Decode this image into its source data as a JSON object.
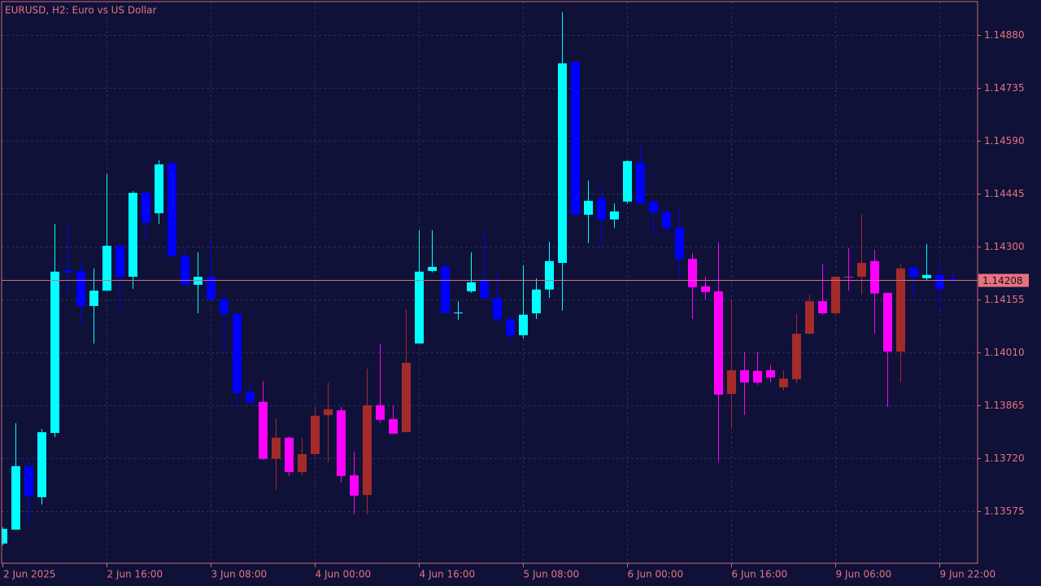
{
  "chart_data": {
    "type": "candlestick",
    "title": "EURUSD, H2:  Euro vs US Dollar",
    "categories": [
      "2 Jun 2025",
      null,
      null,
      null,
      null,
      null,
      null,
      null,
      "2 Jun 16:00",
      null,
      null,
      null,
      null,
      null,
      null,
      null,
      "3 Jun 08:00",
      null,
      null,
      null,
      null,
      null,
      null,
      null,
      "4 Jun 00:00",
      null,
      null,
      null,
      null,
      null,
      null,
      null,
      "4 Jun 16:00",
      null,
      null,
      null,
      null,
      null,
      null,
      null,
      "5 Jun 08:00",
      null,
      null,
      null,
      null,
      null,
      null,
      null,
      "6 Jun 00:00",
      null,
      null,
      null,
      null,
      null,
      null,
      null,
      "6 Jun 16:00",
      null,
      null,
      null,
      null,
      null,
      null,
      null,
      "9 Jun 06:00",
      null,
      null,
      null,
      null,
      null,
      null,
      null,
      "9 Jun 22:00",
      null
    ],
    "open": [
      1.13486,
      1.13524,
      1.13698,
      1.13613,
      1.13789,
      1.14235,
      1.14233,
      1.14137,
      1.14179,
      1.14302,
      1.14217,
      1.14447,
      1.14391,
      1.14528,
      1.14273,
      1.14195,
      1.14217,
      1.14155,
      1.14115,
      1.13901,
      1.13874,
      1.13718,
      1.13776,
      1.13682,
      1.13731,
      1.13838,
      1.13851,
      1.13673,
      1.13619,
      1.13865,
      1.13827,
      1.13791,
      1.14034,
      1.14233,
      1.14244,
      1.14117,
      1.14177,
      1.14206,
      1.14159,
      1.14101,
      1.14057,
      1.14117,
      1.14182,
      1.14255,
      1.14806,
      1.14387,
      1.14432,
      1.14374,
      1.14423,
      1.1453,
      1.14423,
      1.14394,
      1.14351,
      1.14266,
      1.14191,
      1.14177,
      1.13896,
      1.13961,
      1.13959,
      1.13961,
      1.13914,
      1.13936,
      1.14061,
      1.1415,
      1.14117,
      1.14217,
      1.14217,
      1.1426,
      1.14173,
      1.14012,
      1.14242,
      1.14213,
      1.14222,
      1.14211
    ],
    "high": [
      1.1353,
      1.13816,
      1.13715,
      1.138,
      1.14362,
      1.14367,
      1.14262,
      1.1424,
      1.14499,
      1.14307,
      1.14452,
      1.14452,
      1.14536,
      1.14534,
      1.14295,
      1.14284,
      1.14311,
      1.14173,
      1.14119,
      1.13927,
      1.13932,
      1.13829,
      1.13778,
      1.13776,
      1.1386,
      1.13927,
      1.1386,
      1.13738,
      1.13965,
      1.14034,
      1.13865,
      1.14128,
      1.14345,
      1.14345,
      1.14262,
      1.1415,
      1.14284,
      1.14345,
      1.14226,
      1.1411,
      1.14249,
      1.14213,
      1.14313,
      1.14942,
      1.14806,
      1.14481,
      1.14467,
      1.14418,
      1.14536,
      1.14574,
      1.14429,
      1.14409,
      1.14411,
      1.14282,
      1.14217,
      1.14311,
      1.14155,
      1.14012,
      1.14012,
      1.13976,
      1.13961,
      1.14115,
      1.14168,
      1.14251,
      1.14217,
      1.14295,
      1.14387,
      1.14291,
      1.14173,
      1.14251,
      1.14246,
      1.14307,
      1.14258,
      1.14229
    ],
    "low": [
      1.13481,
      1.13524,
      1.13537,
      1.13593,
      1.13778,
      1.14173,
      1.14088,
      1.14034,
      1.14179,
      1.14115,
      1.14184,
      1.14318,
      1.14362,
      1.14273,
      1.14191,
      1.14117,
      1.1415,
      1.14012,
      1.1386,
      1.13865,
      1.13715,
      1.13633,
      1.13671,
      1.13673,
      1.13727,
      1.13709,
      1.13653,
      1.13566,
      1.13566,
      1.13816,
      1.13787,
      1.13791,
      1.14034,
      1.14229,
      1.14117,
      1.14099,
      1.14173,
      1.14155,
      1.14092,
      1.14043,
      1.14048,
      1.14101,
      1.14159,
      1.14124,
      1.14387,
      1.14309,
      1.14302,
      1.14351,
      1.14418,
      1.14418,
      1.14329,
      1.14329,
      1.14213,
      1.14101,
      1.14155,
      1.13709,
      1.138,
      1.13838,
      1.13921,
      1.13927,
      1.13905,
      1.13927,
      1.14059,
      1.14113,
      1.14113,
      1.14179,
      1.14168,
      1.14061,
      1.1386,
      1.13927,
      1.14155,
      1.14206,
      1.14128,
      1.142
    ],
    "close": [
      1.13526,
      1.13698,
      1.13615,
      1.13791,
      1.14231,
      1.14229,
      1.14137,
      1.14179,
      1.14302,
      1.14217,
      1.14447,
      1.14365,
      1.14525,
      1.14273,
      1.14195,
      1.14217,
      1.14155,
      1.14115,
      1.13898,
      1.13874,
      1.13718,
      1.13776,
      1.13682,
      1.13731,
      1.13836,
      1.13854,
      1.13671,
      1.13617,
      1.13865,
      1.13825,
      1.13787,
      1.13981,
      1.14231,
      1.14244,
      1.14117,
      1.14119,
      1.14202,
      1.14159,
      1.14101,
      1.14057,
      1.14113,
      1.14182,
      1.1426,
      1.14802,
      1.14387,
      1.14425,
      1.14374,
      1.14396,
      1.14534,
      1.14418,
      1.14394,
      1.14351,
      1.14266,
      1.14188,
      1.14175,
      1.13894,
      1.13961,
      1.13927,
      1.13927,
      1.13941,
      1.13938,
      1.14061,
      1.1415,
      1.14117,
      1.14217,
      1.14215,
      1.14255,
      1.14171,
      1.14012,
      1.1424,
      1.14217,
      1.14222,
      1.14184,
      1.14206
    ],
    "colors": [
      "#00ffff",
      "#00ffff",
      "#0000ff",
      "#00ffff",
      "#00ffff",
      "#0000ff",
      "#0000ff",
      "#00ffff",
      "#00ffff",
      "#0000ff",
      "#00ffff",
      "#0000ff",
      "#00ffff",
      "#0000ff",
      "#0000ff",
      "#00ffff",
      "#0000ff",
      "#0000ff",
      "#0000ff",
      "#0000ff",
      "#ff00ff",
      "#a52a2a",
      "#ff00ff",
      "#a52a2a",
      "#a52a2a",
      "#a52a2a",
      "#ff00ff",
      "#ff00ff",
      "#a52a2a",
      "#ff00ff",
      "#ff00ff",
      "#a52a2a",
      "#00ffff",
      "#00ffff",
      "#0000ff",
      "#00ffff",
      "#00ffff",
      "#0000ff",
      "#0000ff",
      "#0000ff",
      "#00ffff",
      "#00ffff",
      "#00ffff",
      "#00ffff",
      "#0000ff",
      "#00ffff",
      "#0000ff",
      "#00ffff",
      "#00ffff",
      "#0000ff",
      "#0000ff",
      "#0000ff",
      "#0000ff",
      "#ff00ff",
      "#ff00ff",
      "#ff00ff",
      "#a52a2a",
      "#ff00ff",
      "#ff00ff",
      "#ff00ff",
      "#a52a2a",
      "#a52a2a",
      "#a52a2a",
      "#ff00ff",
      "#a52a2a",
      "#ff00ff",
      "#a52a2a",
      "#ff00ff",
      "#ff00ff",
      "#a52a2a",
      "#0000ff",
      "#00ffff",
      "#0000ff",
      "#0000ff"
    ],
    "last_price": 1.14208,
    "ylim": [
      1.13432,
      1.14971
    ],
    "yticks": [
      {
        "value": 1.1488,
        "label": "1.14880"
      },
      1.14735,
      {
        "value": 1.1459,
        "label": "1.14590"
      },
      1.14445,
      {
        "value": 1.143,
        "label": "1.14300"
      },
      1.14155,
      {
        "value": 1.1401,
        "label": "1.14010"
      },
      1.13865,
      {
        "value": 1.1372,
        "label": "1.13720"
      },
      1.13575
    ],
    "grid": true
  }
}
